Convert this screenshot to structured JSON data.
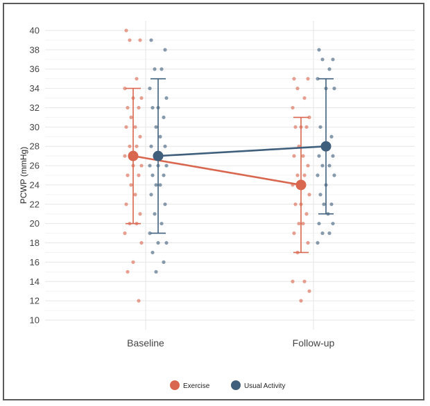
{
  "chart_data": {
    "type": "scatter",
    "ylabel": "PCWP (mmHg)",
    "xlabel": "",
    "ylim": [
      10,
      40
    ],
    "yticks": [
      10,
      12,
      14,
      16,
      18,
      20,
      22,
      24,
      26,
      28,
      30,
      32,
      34,
      36,
      38,
      40
    ],
    "categories": [
      "Baseline",
      "Follow-up"
    ],
    "grid": true,
    "legend_position": "bottom",
    "series": [
      {
        "name": "Exercise",
        "color": "#d9664e",
        "means": [
          27,
          24
        ],
        "error_low": [
          20,
          17
        ],
        "error_high": [
          34,
          31
        ],
        "points": [
          [
            40,
            39,
            39,
            35,
            34,
            33,
            33,
            32,
            32,
            31,
            30,
            30,
            29,
            28,
            28,
            27,
            26,
            26,
            25,
            25,
            24,
            23,
            22,
            21,
            20,
            20,
            19,
            18,
            16,
            15,
            12
          ],
          [
            35,
            35,
            34,
            33,
            32,
            31,
            30,
            30,
            30,
            28,
            27,
            27,
            26,
            25,
            25,
            24,
            23,
            22,
            22,
            21,
            20,
            20,
            19,
            18,
            17,
            14,
            14,
            13,
            12
          ]
        ]
      },
      {
        "name": "Usual Activity",
        "color": "#3f5f7c",
        "means": [
          27,
          28
        ],
        "error_low": [
          19,
          21
        ],
        "error_high": [
          35,
          35
        ],
        "points": [
          [
            39,
            38,
            36,
            36,
            34,
            33,
            32,
            32,
            31,
            30,
            29,
            28,
            28,
            27,
            27,
            26,
            26,
            26,
            25,
            25,
            24,
            24,
            23,
            22,
            21,
            20,
            19,
            18,
            18,
            17,
            16,
            15
          ],
          [
            38,
            37,
            37,
            36,
            35,
            34,
            34,
            30,
            29,
            28,
            28,
            27,
            27,
            26,
            26,
            25,
            25,
            24,
            23,
            22,
            22,
            21,
            20,
            20,
            19,
            19,
            18
          ]
        ]
      }
    ]
  }
}
